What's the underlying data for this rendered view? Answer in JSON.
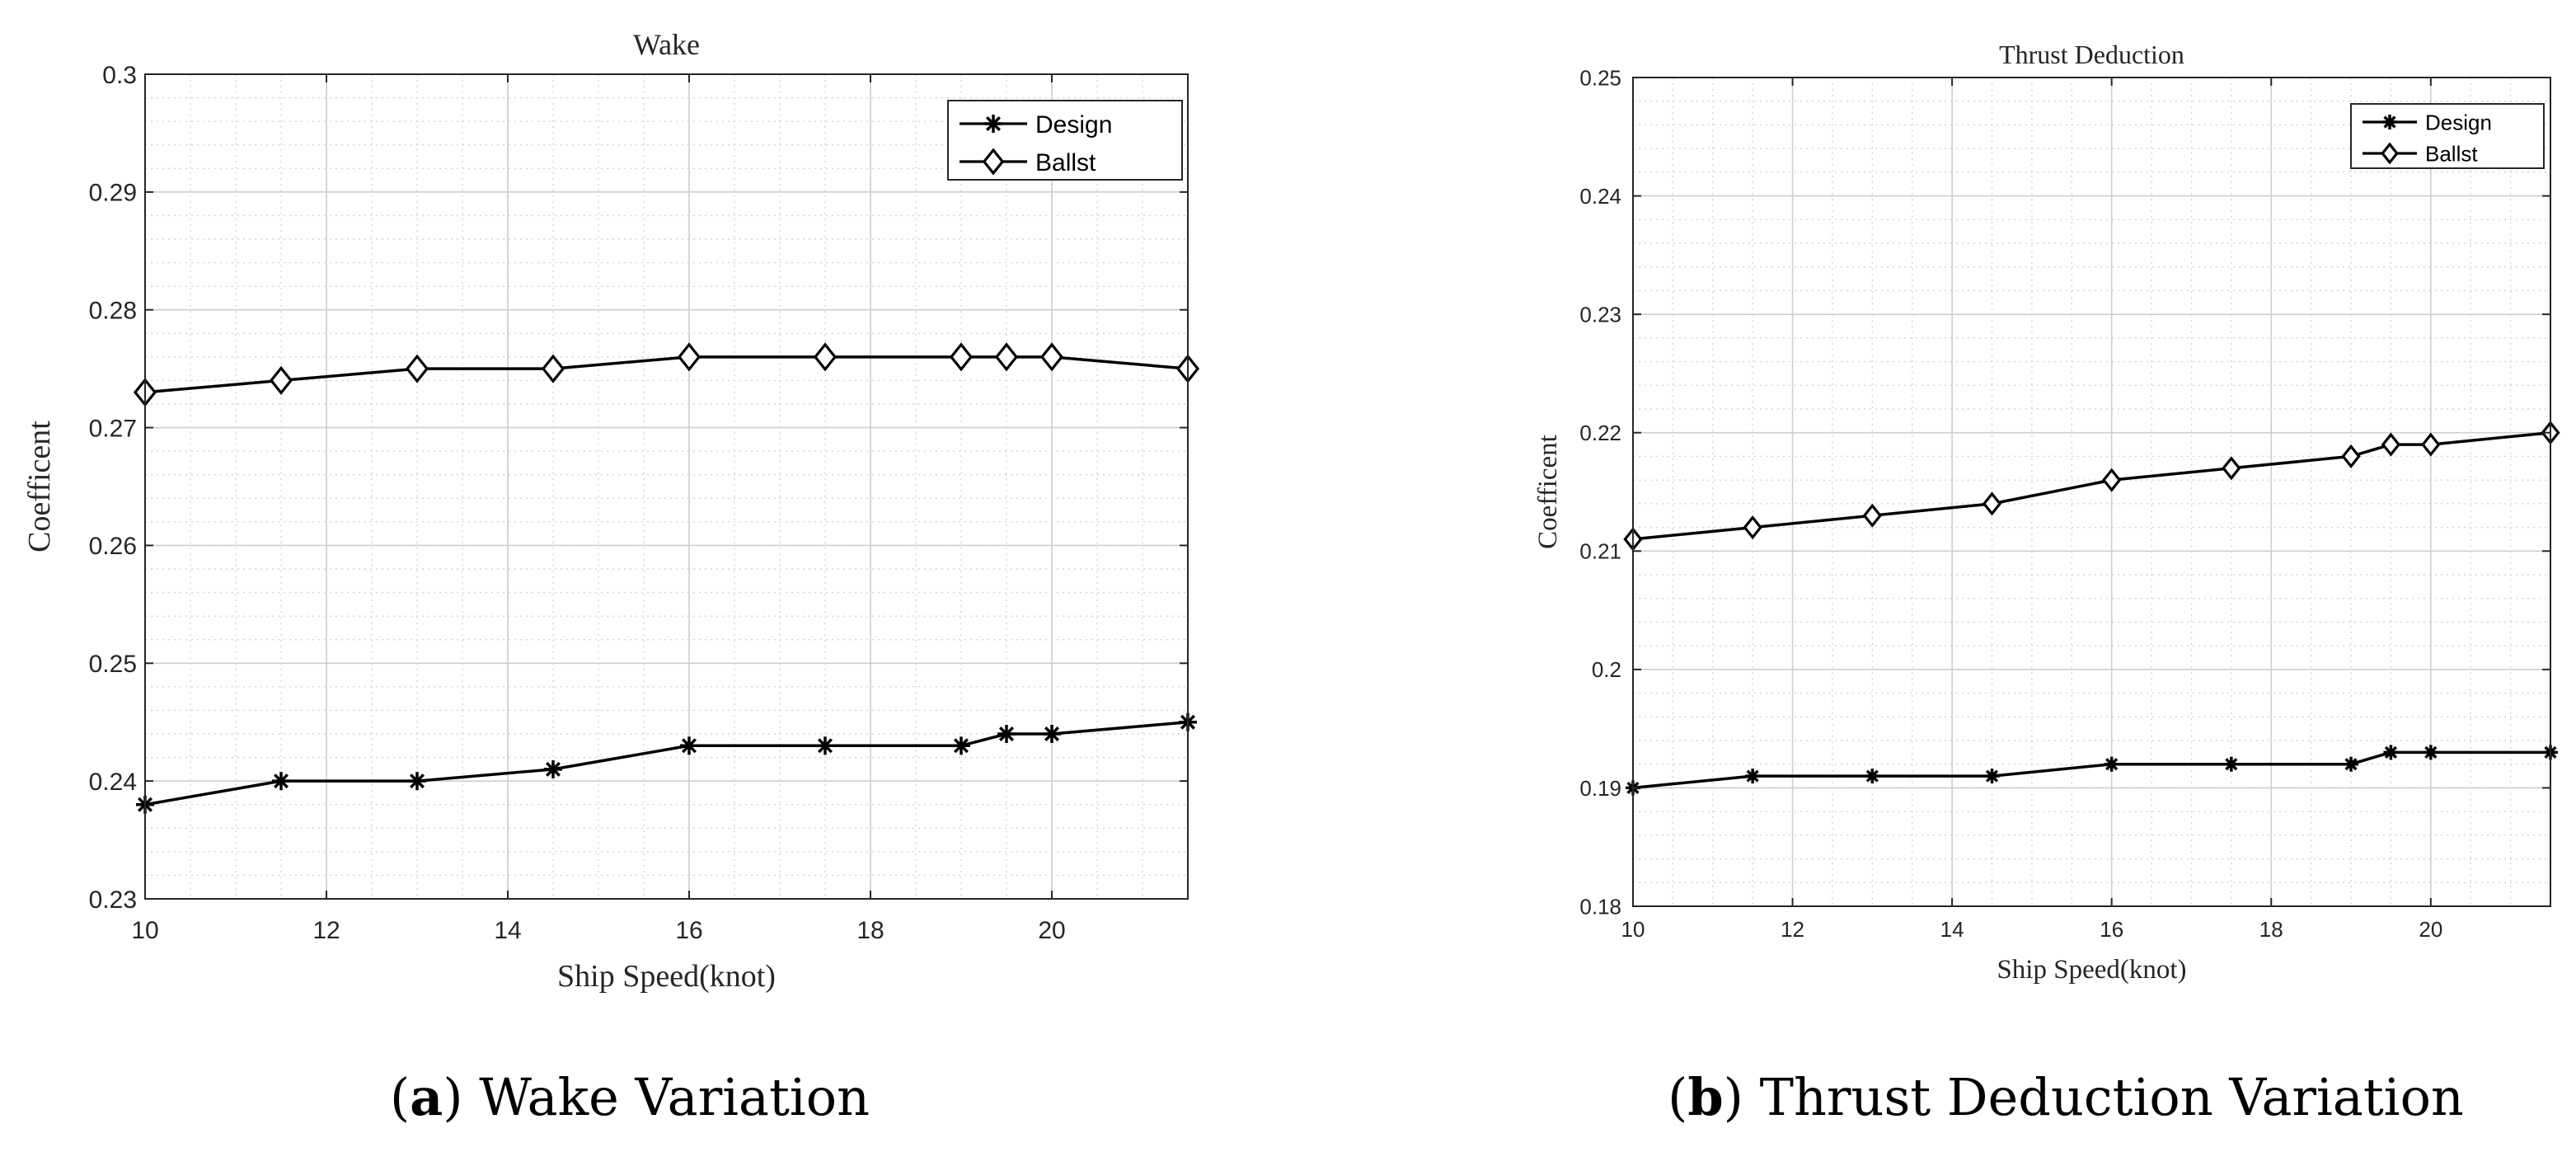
{
  "chart_data": [
    {
      "type": "line",
      "title": "Wake",
      "xlabel": "Ship Speed(knot)",
      "ylabel": "Coefficent",
      "caption_letter": "a",
      "caption_rest": " Wake Variation",
      "xlim": [
        10,
        21.5
      ],
      "ylim": [
        0.23,
        0.3
      ],
      "xticks": [
        10,
        12,
        14,
        16,
        18,
        20
      ],
      "xtick_labels": [
        "10",
        "12",
        "14",
        "16",
        "18",
        "20"
      ],
      "yticks": [
        0.23,
        0.24,
        0.25,
        0.26,
        0.27,
        0.28,
        0.29,
        0.3
      ],
      "ytick_labels": [
        "0.23",
        "0.24",
        "0.25",
        "0.26",
        "0.27",
        "0.28",
        "0.29",
        "0.3"
      ],
      "grid": true,
      "legend": "top-right",
      "x": [
        10,
        11.5,
        13,
        14.5,
        16,
        17.5,
        19,
        19.5,
        20,
        21.5
      ],
      "series": [
        {
          "name": "Design",
          "marker": "star",
          "values": [
            0.238,
            0.24,
            0.24,
            0.241,
            0.243,
            0.243,
            0.243,
            0.244,
            0.244,
            0.245
          ]
        },
        {
          "name": "Ballst",
          "marker": "diamond",
          "values": [
            0.273,
            0.274,
            0.275,
            0.275,
            0.276,
            0.276,
            0.276,
            0.276,
            0.276,
            0.275
          ]
        }
      ]
    },
    {
      "type": "line",
      "title": "Thrust Deduction",
      "xlabel": "Ship Speed(knot)",
      "ylabel": "Coefficent",
      "caption_letter": "b",
      "caption_rest": " Thrust Deduction Variation",
      "xlim": [
        10,
        21.5
      ],
      "ylim": [
        0.18,
        0.25
      ],
      "xticks": [
        10,
        12,
        14,
        16,
        18,
        20
      ],
      "xtick_labels": [
        "10",
        "12",
        "14",
        "16",
        "18",
        "20"
      ],
      "yticks": [
        0.18,
        0.19,
        0.2,
        0.21,
        0.22,
        0.23,
        0.24,
        0.25
      ],
      "ytick_labels": [
        "0.18",
        "0.19",
        "0.2",
        "0.21",
        "0.22",
        "0.23",
        "0.24",
        "0.25"
      ],
      "grid": true,
      "legend": "top-right",
      "x": [
        10,
        11.5,
        13,
        14.5,
        16,
        17.5,
        19,
        19.5,
        20,
        21.5
      ],
      "series": [
        {
          "name": "Design",
          "marker": "star",
          "values": [
            0.19,
            0.191,
            0.191,
            0.191,
            0.192,
            0.192,
            0.192,
            0.193,
            0.193,
            0.193
          ]
        },
        {
          "name": "Ballst",
          "marker": "diamond",
          "values": [
            0.211,
            0.212,
            0.213,
            0.214,
            0.216,
            0.217,
            0.218,
            0.219,
            0.219,
            0.22
          ]
        }
      ]
    }
  ]
}
